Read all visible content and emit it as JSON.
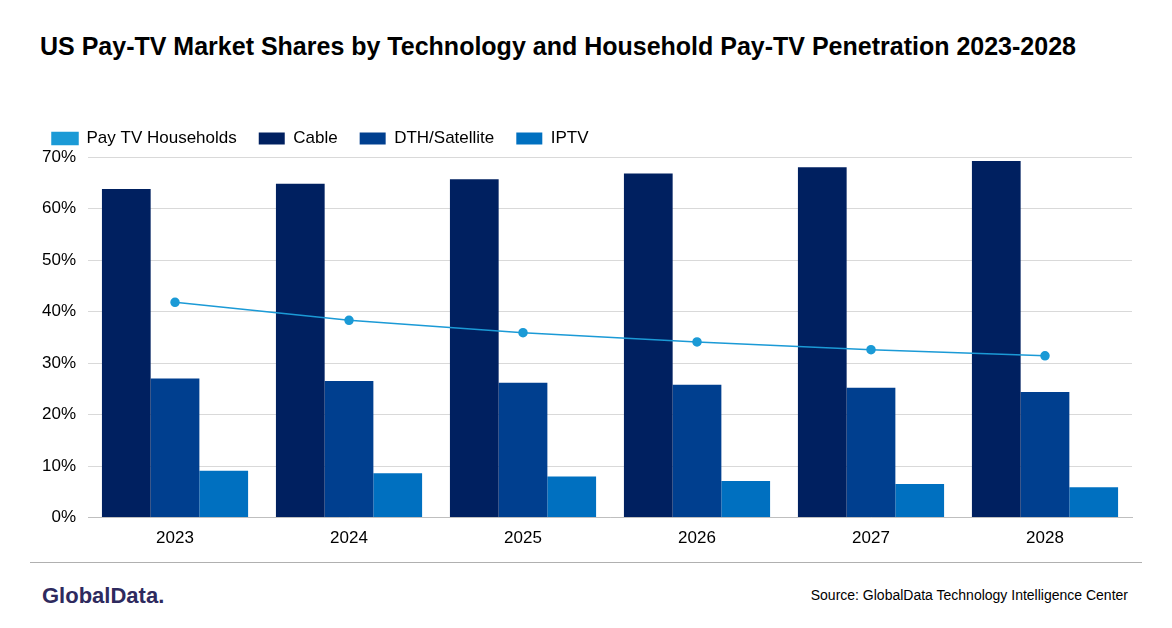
{
  "chart_data": {
    "type": "bar",
    "title": "US Pay-TV Market Shares by Technology and Household Pay-TV Penetration 2023-2028",
    "annotations": [
      "GlobalData.",
      "Source: GlobalData Technology Intelligence Center"
    ],
    "categories": [
      "2023",
      "2024",
      "2025",
      "2026",
      "2027",
      "2028"
    ],
    "series": [
      {
        "name": "Cable",
        "color": "#002060",
        "values": [
          63.8,
          64.8,
          65.7,
          66.8,
          68.0,
          69.2
        ]
      },
      {
        "name": "DTH/Satellite",
        "color": "#003f8f",
        "values": [
          27.0,
          26.5,
          26.2,
          25.8,
          25.2,
          24.4
        ]
      },
      {
        "name": "IPTV",
        "color": "#0070c0",
        "values": [
          9.1,
          8.6,
          8.0,
          7.1,
          6.5,
          5.9
        ]
      },
      {
        "name": "Pay TV Households",
        "color": "#1b9ad6",
        "type": "line",
        "marker": "circle",
        "values": [
          41.8,
          38.3,
          35.9,
          34.1,
          32.6,
          31.4
        ]
      }
    ],
    "ylim": [
      0,
      70
    ],
    "yticks": [
      {
        "value": 0,
        "label": "0%"
      },
      {
        "value": 10,
        "label": "10%"
      },
      {
        "value": 20,
        "label": "20%"
      },
      {
        "value": 30,
        "label": "30%"
      },
      {
        "value": 40,
        "label": "40%"
      },
      {
        "value": 50,
        "label": "50%"
      },
      {
        "value": 60,
        "label": "60%"
      },
      {
        "value": 70,
        "label": "70%"
      }
    ],
    "grid": true,
    "legend": "top-left"
  }
}
